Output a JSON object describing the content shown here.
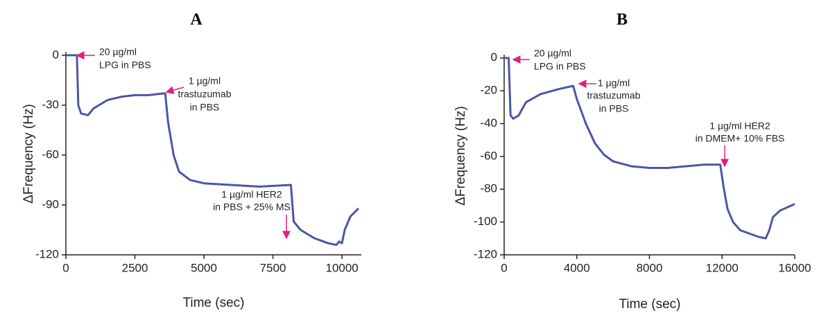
{
  "chart_data": [
    {
      "type": "line",
      "title": "A",
      "xlabel": "Time (sec)",
      "ylabel": "ΔFrequency (Hz)",
      "x": [
        0,
        400,
        450,
        550,
        800,
        1000,
        1500,
        2000,
        2500,
        3000,
        3500,
        3600,
        3700,
        3900,
        4100,
        4500,
        5000,
        6000,
        7000,
        8100,
        8150,
        8250,
        8500,
        9000,
        9500,
        9800,
        9900,
        10000,
        10100,
        10300,
        10600
      ],
      "values": [
        0,
        0,
        -30,
        -35,
        -36,
        -32,
        -27,
        -25,
        -24,
        -24,
        -23,
        -23,
        -40,
        -60,
        -70,
        -75,
        -77,
        -78,
        -79,
        -78,
        -78,
        -100,
        -105,
        -110,
        -113,
        -114,
        -112,
        -113,
        -105,
        -97,
        -92
      ],
      "color": "#4a56a6",
      "xlim": [
        0,
        10700
      ],
      "xticks": [
        0,
        2500,
        5000,
        7500,
        10000
      ],
      "ylim": [
        -120,
        2
      ],
      "yticks": [
        0,
        -30,
        -60,
        -90,
        -120
      ],
      "annotations": [
        {
          "lines": [
            "20 µg/ml",
            "LPG in PBS"
          ]
        },
        {
          "lines": [
            "1 µg/ml",
            "trastuzumab",
            "in PBS"
          ]
        },
        {
          "lines": [
            "1 µg/ml HER2",
            "in PBS + 25% MS"
          ]
        }
      ]
    },
    {
      "type": "line",
      "title": "B",
      "xlabel": "Time (sec)",
      "ylabel": "ΔFrequency (Hz)",
      "x": [
        0,
        250,
        350,
        500,
        800,
        1200,
        2000,
        3000,
        3800,
        4000,
        4500,
        5000,
        5500,
        6000,
        7000,
        8000,
        9000,
        10000,
        11000,
        11900,
        12100,
        12300,
        12600,
        13000,
        14000,
        14400,
        14600,
        14800,
        15200,
        16000
      ],
      "values": [
        0,
        0,
        -35,
        -37,
        -35,
        -27,
        -22,
        -19,
        -17,
        -25,
        -40,
        -52,
        -59,
        -63,
        -66,
        -67,
        -67,
        -66,
        -65,
        -65,
        -80,
        -92,
        -100,
        -105,
        -109,
        -110,
        -105,
        -97,
        -93,
        -89
      ],
      "color": "#4a56a6",
      "xlim": [
        0,
        16000
      ],
      "xticks": [
        0,
        4000,
        8000,
        12000,
        16000
      ],
      "ylim": [
        -120,
        2
      ],
      "yticks": [
        0,
        -20,
        -40,
        -60,
        -80,
        -100,
        -120
      ],
      "annotations": [
        {
          "lines": [
            "20 µg/ml",
            "LPG in PBS"
          ]
        },
        {
          "lines": [
            "1 µg/ml",
            "trastuzumab",
            "in PBS"
          ]
        },
        {
          "lines": [
            "1 µg/ml HER2",
            "in DMEM+ 10% FBS"
          ]
        }
      ]
    }
  ]
}
